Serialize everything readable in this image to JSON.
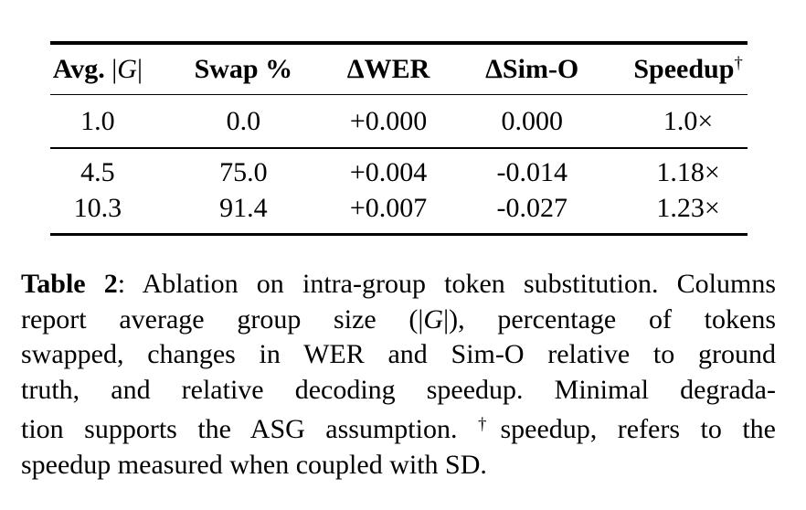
{
  "colors": {
    "background": "#ffffff",
    "text": "#000000",
    "rule": "#000000"
  },
  "table": {
    "header": {
      "avg_label": "Avg.",
      "avg_open_bar": "|",
      "avg_g": "G",
      "avg_close_bar": "|",
      "swap": "Swap %",
      "wer": "ΔWER",
      "simo": "ΔSim-O",
      "speedup": "Speedup",
      "speedup_sup": "†"
    },
    "rows": [
      {
        "avg": "1.0",
        "swap": "0.0",
        "wer": "+0.000",
        "simo": "0.000",
        "speedup": "1.0×"
      },
      {
        "avg": "4.5",
        "swap": "75.0",
        "wer": "+0.004",
        "simo": "-0.014",
        "speedup": "1.18×"
      },
      {
        "avg": "10.3",
        "swap": "91.4",
        "wer": "+0.007",
        "simo": "-0.027",
        "speedup": "1.23×"
      }
    ]
  },
  "caption": {
    "label": "Table 2",
    "line1_rest": ": Ablation on intra-group token substitution. Columns",
    "line2_a": "report average group size (|",
    "line2_g": "G",
    "line2_b": "|), percentage of tokens",
    "line3": "swapped, changes in WER and Sim-O relative to ground",
    "line4": "truth, and relative decoding speedup. Minimal degrada-",
    "line5_a": "tion supports the ASG assumption. ",
    "line5_dagger": "†",
    "line5_b": "speedup, refers to the",
    "line6": "speedup measured when coupled with SD."
  }
}
